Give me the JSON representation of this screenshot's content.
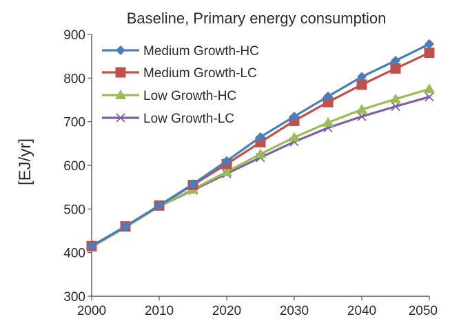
{
  "chart_data": {
    "type": "line",
    "title": "Baseline, Primary energy consumption",
    "xlabel": "",
    "ylabel": "[EJ/yr]",
    "x": [
      2000,
      2005,
      2010,
      2015,
      2020,
      2025,
      2030,
      2035,
      2040,
      2045,
      2050
    ],
    "xlim": [
      2000,
      2050
    ],
    "ylim": [
      300,
      900
    ],
    "xticks": [
      "2000",
      "2010",
      "2020",
      "2030",
      "2040",
      "2050"
    ],
    "yticks": [
      "300",
      "400",
      "500",
      "600",
      "700",
      "800",
      "900"
    ],
    "grid": false,
    "legend_position": "top-left",
    "series": [
      {
        "name": "Medium Growth-HC",
        "color": "#4a7ebb",
        "marker": "diamond",
        "values": [
          415,
          460,
          508,
          557,
          610,
          665,
          712,
          758,
          803,
          840,
          878
        ]
      },
      {
        "name": "Medium Growth-LC",
        "color": "#c0504d",
        "marker": "square",
        "values": [
          415,
          460,
          508,
          555,
          603,
          653,
          702,
          745,
          785,
          822,
          858
        ]
      },
      {
        "name": "Low Growth-HC",
        "color": "#9bbb59",
        "marker": "triangle",
        "values": [
          413,
          458,
          506,
          545,
          585,
          626,
          664,
          698,
          728,
          752,
          775
        ]
      },
      {
        "name": "Low Growth-LC",
        "color": "#7e5ea6",
        "marker": "x",
        "values": [
          413,
          458,
          506,
          543,
          581,
          618,
          654,
          686,
          712,
          735,
          757
        ]
      }
    ]
  }
}
